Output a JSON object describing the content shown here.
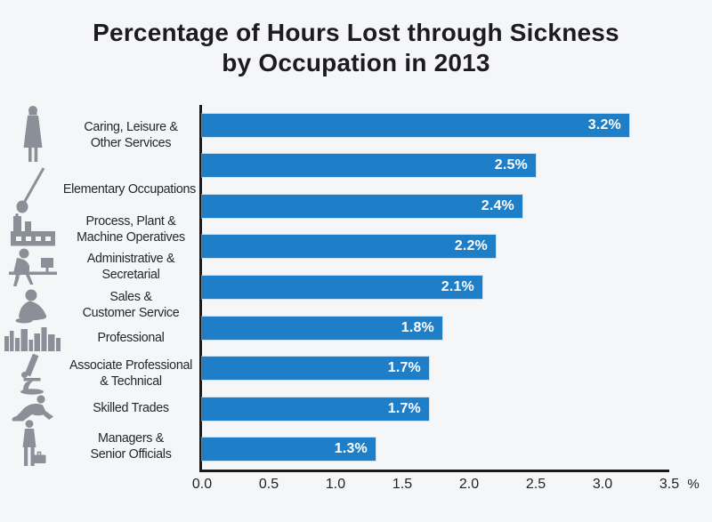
{
  "title": {
    "line1": "Percentage of Hours Lost through Sickness",
    "line2": "by Occupation in 2013"
  },
  "colors": {
    "bar": "#1f7ec8",
    "icon": "#8b8f97",
    "background": "#f5f6f8",
    "axis": "#1a1a1a",
    "value_text": "#ffffff"
  },
  "axis": {
    "ticks": [
      "0.0",
      "0.5",
      "1.0",
      "1.5",
      "2.0",
      "2.5",
      "3.0",
      "3.5"
    ],
    "unit": "%",
    "max": 3.5
  },
  "chart_data": {
    "type": "bar",
    "orientation": "horizontal",
    "title": "Percentage of Hours Lost through Sickness by Occupation in 2013",
    "categories": [
      "Caring, Leisure & Other Services",
      "Elementary Occupations",
      "Process, Plant & Machine Operatives",
      "Administrative & Secretarial",
      "Sales & Customer Service",
      "Professional",
      "Associate Professional & Technical",
      "Skilled Trades",
      "Managers & Senior Officials"
    ],
    "label_lines": [
      [
        "Caring, Leisure &",
        "Other Services"
      ],
      [
        "Elementary Occupations"
      ],
      [
        "Process, Plant &",
        "Machine Operatives"
      ],
      [
        "Administrative &",
        "Secretarial"
      ],
      [
        "Sales &",
        "Customer Service"
      ],
      [
        "Professional"
      ],
      [
        "Associate Professional",
        "& Technical"
      ],
      [
        "Skilled Trades"
      ],
      [
        "Managers &",
        "Senior Officials"
      ]
    ],
    "values": [
      3.2,
      2.5,
      2.4,
      2.2,
      2.1,
      1.8,
      1.7,
      1.7,
      1.3
    ],
    "value_labels": [
      "3.2%",
      "2.5%",
      "2.4%",
      "2.2%",
      "2.1%",
      "1.8%",
      "1.7%",
      "1.7%",
      "1.3%"
    ],
    "icons": [
      "carer-icon",
      "mop-icon",
      "factory-icon",
      "office-worker-icon",
      "customer-service-icon",
      "skyline-icon",
      "microscope-icon",
      "kneeling-worker-icon",
      "manager-icon"
    ],
    "xlabel": "%",
    "xlim": [
      0,
      3.5
    ],
    "grid": false,
    "legend": false
  }
}
